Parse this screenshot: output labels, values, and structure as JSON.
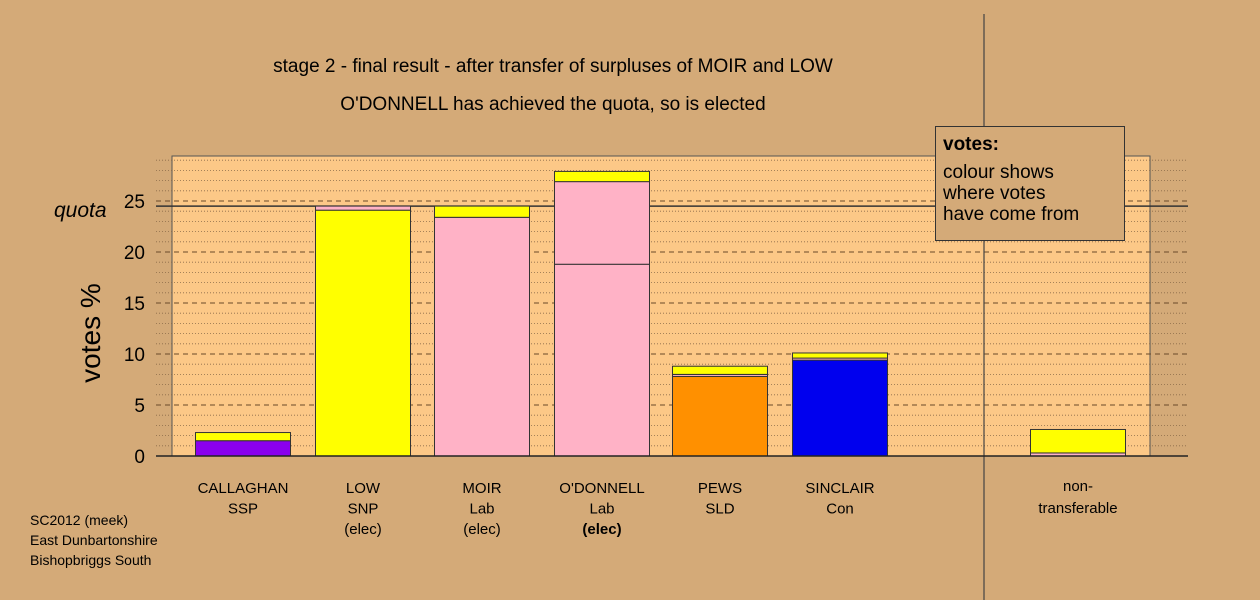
{
  "titles": {
    "line1": "stage 2 - final result - after transfer of surpluses of MOIR and LOW",
    "line2": "O'DONNELL has achieved the quota, so is elected"
  },
  "legend": {
    "title": "votes:",
    "body": "colour shows\nwhere votes\nhave come from"
  },
  "footer": {
    "line1": "SC2012 (meek)",
    "line2": "East Dunbartonshire",
    "line3": "Bishopbriggs South"
  },
  "colors": {
    "background": "#d4aa78",
    "plot_area": "#fcc887",
    "SSP": "#8b00ee",
    "SNP": "#ffff00",
    "Lab": "#ffb2c6",
    "SLD": "#ff9000",
    "Con": "#0000ee"
  },
  "chart_data": {
    "type": "bar",
    "stacked": true,
    "ylabel": "votes %",
    "ylim": [
      0,
      29.5
    ],
    "yticks": [
      0,
      5,
      10,
      15,
      20,
      25
    ],
    "quota": 24.5,
    "quota_label": "quota",
    "grid": "dashed major, dotted minor",
    "candidates": [
      {
        "name": "CALLAGHAN",
        "party": "SSP",
        "status": "",
        "segments": [
          {
            "from": "SSP",
            "value": 1.5
          },
          {
            "from": "SNP",
            "value": 0.8
          }
        ]
      },
      {
        "name": "LOW",
        "party": "SNP",
        "status": "(elec)",
        "segments": [
          {
            "from": "SNP",
            "value": 24.1
          },
          {
            "from": "Lab",
            "value": 0.4
          }
        ]
      },
      {
        "name": "MOIR",
        "party": "Lab",
        "status": "(elec)",
        "segments": [
          {
            "from": "Lab",
            "value": 23.4
          },
          {
            "from": "SNP",
            "value": 1.1
          }
        ]
      },
      {
        "name": "O'DONNELL",
        "party": "Lab",
        "status": "(elec)",
        "segments": [
          {
            "from": "Lab",
            "value": 18.8
          },
          {
            "from": "Lab",
            "value": 8.1
          },
          {
            "from": "SNP",
            "value": 1.0
          }
        ]
      },
      {
        "name": "PEWS",
        "party": "SLD",
        "status": "",
        "segments": [
          {
            "from": "SLD",
            "value": 7.8
          },
          {
            "from": "Lab",
            "value": 0.2
          },
          {
            "from": "SNP",
            "value": 0.8
          }
        ]
      },
      {
        "name": "SINCLAIR",
        "party": "Con",
        "status": "",
        "segments": [
          {
            "from": "Con",
            "value": 9.4
          },
          {
            "from": "Lab",
            "value": 0.2
          },
          {
            "from": "SNP",
            "value": 0.5
          }
        ]
      }
    ],
    "nontransferable": {
      "label_line1": "non-",
      "label_line2": "transferable",
      "segments": [
        {
          "from": "Lab",
          "value": 0.3
        },
        {
          "from": "SNP",
          "value": 2.3
        }
      ]
    }
  }
}
